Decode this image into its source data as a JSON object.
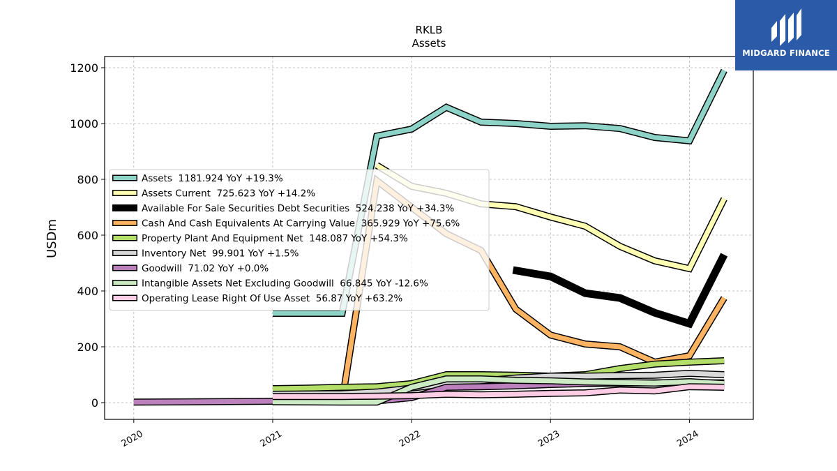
{
  "logo": {
    "text": "MIDGARD FINANCE"
  },
  "chart_data": {
    "type": "line",
    "title": "RKLB",
    "subtitle": "Assets",
    "ylabel": "USDm",
    "xlabel": "",
    "ylim": [
      -60,
      1240
    ],
    "xlim": [
      2019.79,
      2024.46
    ],
    "yticks": [
      0,
      200,
      400,
      600,
      800,
      1000,
      1200
    ],
    "xticks": [
      {
        "v": 2020,
        "label": "2020"
      },
      {
        "v": 2021,
        "label": "2021"
      },
      {
        "v": 2022,
        "label": "2022"
      },
      {
        "v": 2023,
        "label": "2023"
      },
      {
        "v": 2024,
        "label": "2024"
      }
    ],
    "grid": true,
    "legend_position": "center-left",
    "series": [
      {
        "name": "Assets",
        "legend": "Assets  1181.924 YoY +19.3%",
        "color": "#8dd3c7",
        "width": 7,
        "x": [
          2021.0,
          2021.5,
          2021.75,
          2022.0,
          2022.25,
          2022.5,
          2022.75,
          2023.0,
          2023.25,
          2023.5,
          2023.75,
          2024.0,
          2024.25
        ],
        "y": [
          320,
          320,
          955,
          980,
          1058,
          1005,
          1000,
          990,
          992,
          982,
          950,
          938,
          1190
        ]
      },
      {
        "name": "Assets Current",
        "legend": "Assets Current  725.623 YoY +14.2%",
        "color": "#ffffb3",
        "width": 7,
        "x": [
          2021.75,
          2022.0,
          2022.25,
          2022.5,
          2022.75,
          2023.0,
          2023.25,
          2023.5,
          2023.75,
          2024.0,
          2024.25
        ],
        "y": [
          850,
          775,
          750,
          712,
          702,
          665,
          632,
          560,
          508,
          480,
          730
        ]
      },
      {
        "name": "Available For Sale Securities Debt Securities",
        "legend": "Available For Sale Securities Debt Securities  524.238 YoY +34.3%",
        "color": "#000000",
        "width": 11,
        "noOutline": true,
        "x": [
          2022.73,
          2023.0,
          2023.25,
          2023.5,
          2023.75,
          2024.0,
          2024.25
        ],
        "y": [
          475,
          452,
          392,
          375,
          322,
          283,
          530
        ]
      },
      {
        "name": "Cash And Cash Equivalents At Carrying Value",
        "legend": "Cash And Cash Equivalents At Carrying Value  365.929 YoY +75.6%",
        "color": "#fdb462",
        "width": 7,
        "x": [
          2021.0,
          2021.5,
          2021.75,
          2022.0,
          2022.25,
          2022.5,
          2022.75,
          2023.0,
          2023.25,
          2023.5,
          2023.75,
          2024.0,
          2024.25
        ],
        "y": [
          10,
          5,
          795,
          700,
          605,
          545,
          335,
          242,
          210,
          200,
          145,
          168,
          375
        ]
      },
      {
        "name": "Property Plant And Equipment Net",
        "legend": "Property Plant And Equipment Net  148.087 YoY +54.3%",
        "color": "#b3de69",
        "width": 7,
        "x": [
          2021.0,
          2021.25,
          2021.5,
          2021.75,
          2022.0,
          2022.25,
          2022.5,
          2022.75,
          2023.0,
          2023.25,
          2023.5,
          2023.75,
          2024.0,
          2024.25
        ],
        "y": [
          50,
          52,
          55,
          57,
          68,
          100,
          100,
          98,
          95,
          100,
          122,
          138,
          145,
          150
        ]
      },
      {
        "name": "Inventory Net",
        "legend": "Inventory Net  99.901 YoY +1.5%",
        "color": "#d9d9d9",
        "width": 7,
        "x": [
          2021.0,
          2021.5,
          2021.75,
          2022.0,
          2022.25,
          2022.5,
          2022.75,
          2023.0,
          2023.25,
          2023.5,
          2023.75,
          2024.0,
          2024.25
        ],
        "y": [
          30,
          32,
          38,
          52,
          68,
          78,
          88,
          95,
          95,
          97,
          98,
          105,
          100
        ]
      },
      {
        "name": "Goodwill",
        "legend": "Goodwill  71.02 YoY +0.0%",
        "color": "#bc80bd",
        "width": 7,
        "x": [
          2020.0,
          2020.5,
          2021.0,
          2021.5,
          2021.75,
          2022.0,
          2022.25,
          2022.5,
          2022.75,
          2023.0,
          2023.25,
          2023.5,
          2023.75,
          2024.0,
          2024.25
        ],
        "y": [
          2,
          3,
          5,
          5,
          6,
          18,
          55,
          57,
          60,
          65,
          68,
          70,
          71,
          71,
          71
        ]
      },
      {
        "name": "Intangible Assets Net Excluding Goodwill",
        "legend": "Intangible Assets Net Excluding Goodwill  66.845 YoY -12.6%",
        "color": "#ccebc5",
        "width": 7,
        "x": [
          2021.0,
          2021.5,
          2021.75,
          2022.0,
          2022.25,
          2022.5,
          2022.75,
          2023.0,
          2023.25,
          2023.5,
          2023.75,
          2024.0,
          2024.25
        ],
        "y": [
          3,
          2,
          2,
          55,
          85,
          85,
          80,
          78,
          74,
          72,
          70,
          75,
          68
        ]
      },
      {
        "name": "Operating Lease Right Of Use Asset",
        "legend": "Operating Lease Right Of Use Asset  56.87 YoY +63.2%",
        "color": "#fccde5",
        "width": 7,
        "x": [
          2021.0,
          2021.5,
          2021.75,
          2022.0,
          2022.25,
          2022.5,
          2022.75,
          2023.0,
          2023.25,
          2023.5,
          2023.75,
          2024.0,
          2024.25
        ],
        "y": [
          22,
          22,
          23,
          25,
          30,
          28,
          30,
          33,
          35,
          45,
          42,
          57,
          55
        ]
      }
    ]
  }
}
